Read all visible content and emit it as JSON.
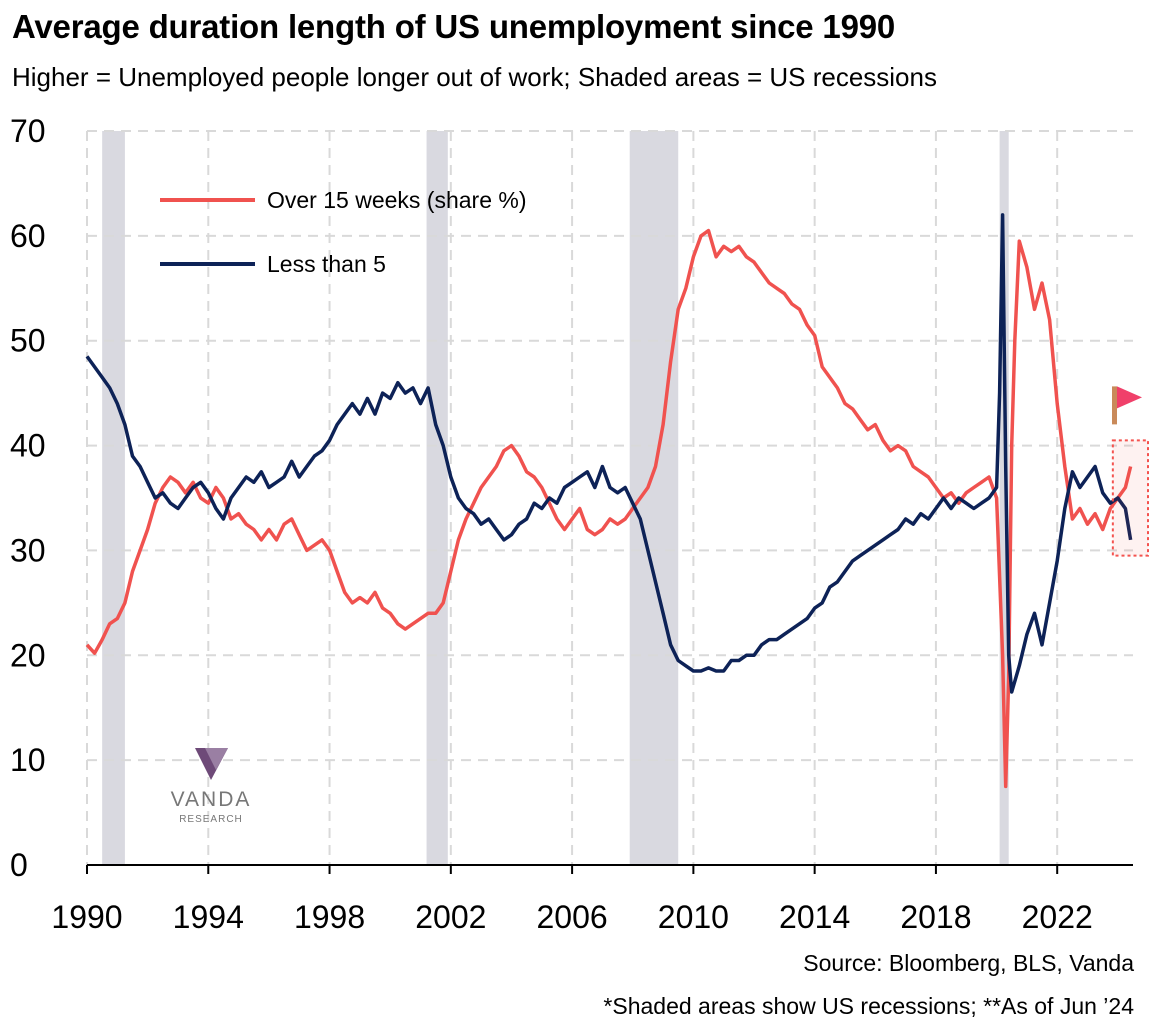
{
  "header": {
    "title": "Average duration length of US unemployment since 1990",
    "subtitle": "Higher = Unemployed people longer out of work; Shaded areas = US recessions"
  },
  "footer": {
    "source": "Source: Bloomberg, BLS, Vanda",
    "footnote": "*Shaded areas show US recessions; **As of Jun ’24"
  },
  "logo": {
    "name": "VANDA",
    "tagline": "RESEARCH"
  },
  "colors": {
    "over15": "#f0524f",
    "less5": "#0d2257",
    "recession": "#d9d9e0",
    "grid": "#d9d9d9",
    "flag": "#f0406a",
    "highlight": "#f4534f"
  },
  "chart_data": {
    "type": "line",
    "title": "Average duration length of US unemployment since 1990",
    "xlabel": "",
    "ylabel": "",
    "xlim": [
      1990,
      2024.5
    ],
    "ylim": [
      0,
      70
    ],
    "y_ticks": [
      0,
      10,
      20,
      30,
      40,
      50,
      60,
      70
    ],
    "x_ticks": [
      1990,
      1994,
      1998,
      2002,
      2006,
      2010,
      2014,
      2018,
      2022
    ],
    "grid": true,
    "legend_position": "top-left",
    "recessions": [
      [
        1990.5,
        1991.25
      ],
      [
        2001.2,
        2001.9
      ],
      [
        2007.9,
        2009.5
      ],
      [
        2020.1,
        2020.4
      ]
    ],
    "series": [
      {
        "name": "Over 15 weeks (share %)",
        "color": "#f0524f",
        "points": [
          [
            1990.0,
            21
          ],
          [
            1990.25,
            20.2
          ],
          [
            1990.5,
            21.5
          ],
          [
            1990.75,
            23
          ],
          [
            1991.0,
            23.5
          ],
          [
            1991.25,
            25
          ],
          [
            1991.5,
            28
          ],
          [
            1991.75,
            30
          ],
          [
            1992.0,
            32
          ],
          [
            1992.25,
            34.5
          ],
          [
            1992.5,
            36
          ],
          [
            1992.75,
            37
          ],
          [
            1993.0,
            36.5
          ],
          [
            1993.25,
            35.5
          ],
          [
            1993.5,
            36.5
          ],
          [
            1993.75,
            35
          ],
          [
            1994.0,
            34.5
          ],
          [
            1994.25,
            36
          ],
          [
            1994.5,
            35
          ],
          [
            1994.75,
            33
          ],
          [
            1995.0,
            33.5
          ],
          [
            1995.25,
            32.5
          ],
          [
            1995.5,
            32
          ],
          [
            1995.75,
            31
          ],
          [
            1996.0,
            32
          ],
          [
            1996.25,
            31
          ],
          [
            1996.5,
            32.5
          ],
          [
            1996.75,
            33
          ],
          [
            1997.0,
            31.5
          ],
          [
            1997.25,
            30
          ],
          [
            1997.5,
            30.5
          ],
          [
            1997.75,
            31
          ],
          [
            1998.0,
            30
          ],
          [
            1998.25,
            28
          ],
          [
            1998.5,
            26
          ],
          [
            1998.75,
            25
          ],
          [
            1999.0,
            25.5
          ],
          [
            1999.25,
            25
          ],
          [
            1999.5,
            26
          ],
          [
            1999.75,
            24.5
          ],
          [
            2000.0,
            24
          ],
          [
            2000.25,
            23
          ],
          [
            2000.5,
            22.5
          ],
          [
            2000.75,
            23
          ],
          [
            2001.0,
            23.5
          ],
          [
            2001.25,
            24
          ],
          [
            2001.5,
            24
          ],
          [
            2001.75,
            25
          ],
          [
            2002.0,
            28
          ],
          [
            2002.25,
            31
          ],
          [
            2002.5,
            33
          ],
          [
            2002.75,
            34.5
          ],
          [
            2003.0,
            36
          ],
          [
            2003.25,
            37
          ],
          [
            2003.5,
            38
          ],
          [
            2003.75,
            39.5
          ],
          [
            2004.0,
            40
          ],
          [
            2004.25,
            39
          ],
          [
            2004.5,
            37.5
          ],
          [
            2004.75,
            37
          ],
          [
            2005.0,
            36
          ],
          [
            2005.25,
            34.5
          ],
          [
            2005.5,
            33
          ],
          [
            2005.75,
            32
          ],
          [
            2006.0,
            33
          ],
          [
            2006.25,
            34
          ],
          [
            2006.5,
            32
          ],
          [
            2006.75,
            31.5
          ],
          [
            2007.0,
            32
          ],
          [
            2007.25,
            33
          ],
          [
            2007.5,
            32.5
          ],
          [
            2007.75,
            33
          ],
          [
            2008.0,
            34
          ],
          [
            2008.25,
            35
          ],
          [
            2008.5,
            36
          ],
          [
            2008.75,
            38
          ],
          [
            2009.0,
            42
          ],
          [
            2009.25,
            48
          ],
          [
            2009.5,
            53
          ],
          [
            2009.75,
            55
          ],
          [
            2010.0,
            58
          ],
          [
            2010.25,
            60
          ],
          [
            2010.5,
            60.5
          ],
          [
            2010.75,
            58
          ],
          [
            2011.0,
            59
          ],
          [
            2011.25,
            58.5
          ],
          [
            2011.5,
            59
          ],
          [
            2011.75,
            58
          ],
          [
            2012.0,
            57.5
          ],
          [
            2012.25,
            56.5
          ],
          [
            2012.5,
            55.5
          ],
          [
            2012.75,
            55
          ],
          [
            2013.0,
            54.5
          ],
          [
            2013.25,
            53.5
          ],
          [
            2013.5,
            53
          ],
          [
            2013.75,
            51.5
          ],
          [
            2014.0,
            50.5
          ],
          [
            2014.25,
            47.5
          ],
          [
            2014.5,
            46.5
          ],
          [
            2014.75,
            45.5
          ],
          [
            2015.0,
            44
          ],
          [
            2015.25,
            43.5
          ],
          [
            2015.5,
            42.5
          ],
          [
            2015.75,
            41.5
          ],
          [
            2016.0,
            42
          ],
          [
            2016.25,
            40.5
          ],
          [
            2016.5,
            39.5
          ],
          [
            2016.75,
            40
          ],
          [
            2017.0,
            39.5
          ],
          [
            2017.25,
            38
          ],
          [
            2017.5,
            37.5
          ],
          [
            2017.75,
            37
          ],
          [
            2018.0,
            36
          ],
          [
            2018.25,
            35
          ],
          [
            2018.5,
            35.5
          ],
          [
            2018.75,
            34.5
          ],
          [
            2019.0,
            35.5
          ],
          [
            2019.25,
            36
          ],
          [
            2019.5,
            36.5
          ],
          [
            2019.75,
            37
          ],
          [
            2020.0,
            35
          ],
          [
            2020.2,
            20
          ],
          [
            2020.3,
            7.5
          ],
          [
            2020.4,
            18
          ],
          [
            2020.5,
            40
          ],
          [
            2020.6,
            50
          ],
          [
            2020.75,
            59.5
          ],
          [
            2021.0,
            57
          ],
          [
            2021.25,
            53
          ],
          [
            2021.5,
            55.5
          ],
          [
            2021.75,
            52
          ],
          [
            2022.0,
            44
          ],
          [
            2022.25,
            38
          ],
          [
            2022.5,
            33
          ],
          [
            2022.75,
            34
          ],
          [
            2023.0,
            32.5
          ],
          [
            2023.25,
            33.5
          ],
          [
            2023.5,
            32
          ],
          [
            2023.75,
            34
          ],
          [
            2024.0,
            35
          ],
          [
            2024.25,
            36
          ],
          [
            2024.42,
            38
          ]
        ]
      },
      {
        "name": "Less than 5",
        "color": "#0d2257",
        "points": [
          [
            1990.0,
            48.5
          ],
          [
            1990.25,
            47.5
          ],
          [
            1990.5,
            46.5
          ],
          [
            1990.75,
            45.5
          ],
          [
            1991.0,
            44
          ],
          [
            1991.25,
            42
          ],
          [
            1991.5,
            39
          ],
          [
            1991.75,
            38
          ],
          [
            1992.0,
            36.5
          ],
          [
            1992.25,
            35
          ],
          [
            1992.5,
            35.5
          ],
          [
            1992.75,
            34.5
          ],
          [
            1993.0,
            34
          ],
          [
            1993.25,
            35
          ],
          [
            1993.5,
            36
          ],
          [
            1993.75,
            36.5
          ],
          [
            1994.0,
            35.5
          ],
          [
            1994.25,
            34
          ],
          [
            1994.5,
            33
          ],
          [
            1994.75,
            35
          ],
          [
            1995.0,
            36
          ],
          [
            1995.25,
            37
          ],
          [
            1995.5,
            36.5
          ],
          [
            1995.75,
            37.5
          ],
          [
            1996.0,
            36
          ],
          [
            1996.25,
            36.5
          ],
          [
            1996.5,
            37
          ],
          [
            1996.75,
            38.5
          ],
          [
            1997.0,
            37
          ],
          [
            1997.25,
            38
          ],
          [
            1997.5,
            39
          ],
          [
            1997.75,
            39.5
          ],
          [
            1998.0,
            40.5
          ],
          [
            1998.25,
            42
          ],
          [
            1998.5,
            43
          ],
          [
            1998.75,
            44
          ],
          [
            1999.0,
            43
          ],
          [
            1999.25,
            44.5
          ],
          [
            1999.5,
            43
          ],
          [
            1999.75,
            45
          ],
          [
            2000.0,
            44.5
          ],
          [
            2000.25,
            46
          ],
          [
            2000.5,
            45
          ],
          [
            2000.75,
            45.5
          ],
          [
            2001.0,
            44
          ],
          [
            2001.25,
            45.5
          ],
          [
            2001.5,
            42
          ],
          [
            2001.75,
            40
          ],
          [
            2002.0,
            37
          ],
          [
            2002.25,
            35
          ],
          [
            2002.5,
            34
          ],
          [
            2002.75,
            33.5
          ],
          [
            2003.0,
            32.5
          ],
          [
            2003.25,
            33
          ],
          [
            2003.5,
            32
          ],
          [
            2003.75,
            31
          ],
          [
            2004.0,
            31.5
          ],
          [
            2004.25,
            32.5
          ],
          [
            2004.5,
            33
          ],
          [
            2004.75,
            34.5
          ],
          [
            2005.0,
            34
          ],
          [
            2005.25,
            35
          ],
          [
            2005.5,
            34.5
          ],
          [
            2005.75,
            36
          ],
          [
            2006.0,
            36.5
          ],
          [
            2006.25,
            37
          ],
          [
            2006.5,
            37.5
          ],
          [
            2006.75,
            36
          ],
          [
            2007.0,
            38
          ],
          [
            2007.25,
            36
          ],
          [
            2007.5,
            35.5
          ],
          [
            2007.75,
            36
          ],
          [
            2008.0,
            34.5
          ],
          [
            2008.25,
            33
          ],
          [
            2008.5,
            30
          ],
          [
            2008.75,
            27
          ],
          [
            2009.0,
            24
          ],
          [
            2009.25,
            21
          ],
          [
            2009.5,
            19.5
          ],
          [
            2009.75,
            19
          ],
          [
            2010.0,
            18.5
          ],
          [
            2010.25,
            18.5
          ],
          [
            2010.5,
            18.8
          ],
          [
            2010.75,
            18.5
          ],
          [
            2011.0,
            18.5
          ],
          [
            2011.25,
            19.5
          ],
          [
            2011.5,
            19.5
          ],
          [
            2011.75,
            20
          ],
          [
            2012.0,
            20
          ],
          [
            2012.25,
            21
          ],
          [
            2012.5,
            21.5
          ],
          [
            2012.75,
            21.5
          ],
          [
            2013.0,
            22
          ],
          [
            2013.25,
            22.5
          ],
          [
            2013.5,
            23
          ],
          [
            2013.75,
            23.5
          ],
          [
            2014.0,
            24.5
          ],
          [
            2014.25,
            25
          ],
          [
            2014.5,
            26.5
          ],
          [
            2014.75,
            27
          ],
          [
            2015.0,
            28
          ],
          [
            2015.25,
            29
          ],
          [
            2015.5,
            29.5
          ],
          [
            2015.75,
            30
          ],
          [
            2016.0,
            30.5
          ],
          [
            2016.25,
            31
          ],
          [
            2016.5,
            31.5
          ],
          [
            2016.75,
            32
          ],
          [
            2017.0,
            33
          ],
          [
            2017.25,
            32.5
          ],
          [
            2017.5,
            33.5
          ],
          [
            2017.75,
            33
          ],
          [
            2018.0,
            34
          ],
          [
            2018.25,
            35
          ],
          [
            2018.5,
            34
          ],
          [
            2018.75,
            35
          ],
          [
            2019.0,
            34.5
          ],
          [
            2019.25,
            34
          ],
          [
            2019.5,
            34.5
          ],
          [
            2019.75,
            35
          ],
          [
            2020.0,
            36
          ],
          [
            2020.1,
            45
          ],
          [
            2020.2,
            62
          ],
          [
            2020.3,
            38
          ],
          [
            2020.4,
            20
          ],
          [
            2020.5,
            16.5
          ],
          [
            2020.75,
            19
          ],
          [
            2021.0,
            22
          ],
          [
            2021.25,
            24
          ],
          [
            2021.5,
            21
          ],
          [
            2021.75,
            25
          ],
          [
            2022.0,
            29
          ],
          [
            2022.25,
            34
          ],
          [
            2022.5,
            37.5
          ],
          [
            2022.75,
            36
          ],
          [
            2023.0,
            37
          ],
          [
            2023.25,
            38
          ],
          [
            2023.5,
            35.5
          ],
          [
            2023.75,
            34.5
          ],
          [
            2024.0,
            35
          ],
          [
            2024.25,
            34
          ],
          [
            2024.42,
            31
          ]
        ]
      }
    ],
    "annotations": {
      "highlight_range": [
        2024.0,
        2024.5,
        29.5,
        40.5
      ],
      "flag_value": 44.5
    }
  }
}
